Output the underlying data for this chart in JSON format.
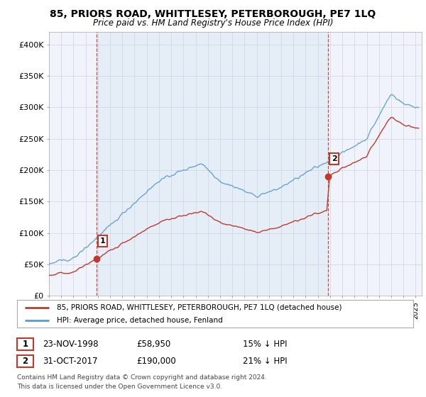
{
  "title": "85, PRIORS ROAD, WHITTLESEY, PETERBOROUGH, PE7 1LQ",
  "subtitle": "Price paid vs. HM Land Registry's House Price Index (HPI)",
  "ylabel_ticks": [
    "£0",
    "£50K",
    "£100K",
    "£150K",
    "£200K",
    "£250K",
    "£300K",
    "£350K",
    "£400K"
  ],
  "ytick_values": [
    0,
    50000,
    100000,
    150000,
    200000,
    250000,
    300000,
    350000,
    400000
  ],
  "ylim": [
    0,
    420000
  ],
  "xlim_start": 1995.0,
  "xlim_end": 2025.5,
  "sale1_date": 1998.9,
  "sale1_price": 58950,
  "sale1_label": "1",
  "sale2_date": 2017.83,
  "sale2_price": 190000,
  "sale2_label": "2",
  "hpi_color": "#5b9bd5",
  "hpi_fill_color": "#dce9f5",
  "price_color": "#c0392b",
  "vline_color": "#c0392b",
  "annotation_box_color": "#c0392b",
  "grid_color": "#d0d8e8",
  "background_color": "#ffffff",
  "chart_bg_color": "#f0f4fa",
  "legend_line1": "85, PRIORS ROAD, WHITTLESEY, PETERBOROUGH, PE7 1LQ (detached house)",
  "legend_line2": "HPI: Average price, detached house, Fenland",
  "footer1": "Contains HM Land Registry data © Crown copyright and database right 2024.",
  "footer2": "This data is licensed under the Open Government Licence v3.0.",
  "table_row1_num": "1",
  "table_row1_date": "23-NOV-1998",
  "table_row1_price": "£58,950",
  "table_row1_hpi": "15% ↓ HPI",
  "table_row2_num": "2",
  "table_row2_date": "31-OCT-2017",
  "table_row2_price": "£190,000",
  "table_row2_hpi": "21% ↓ HPI"
}
